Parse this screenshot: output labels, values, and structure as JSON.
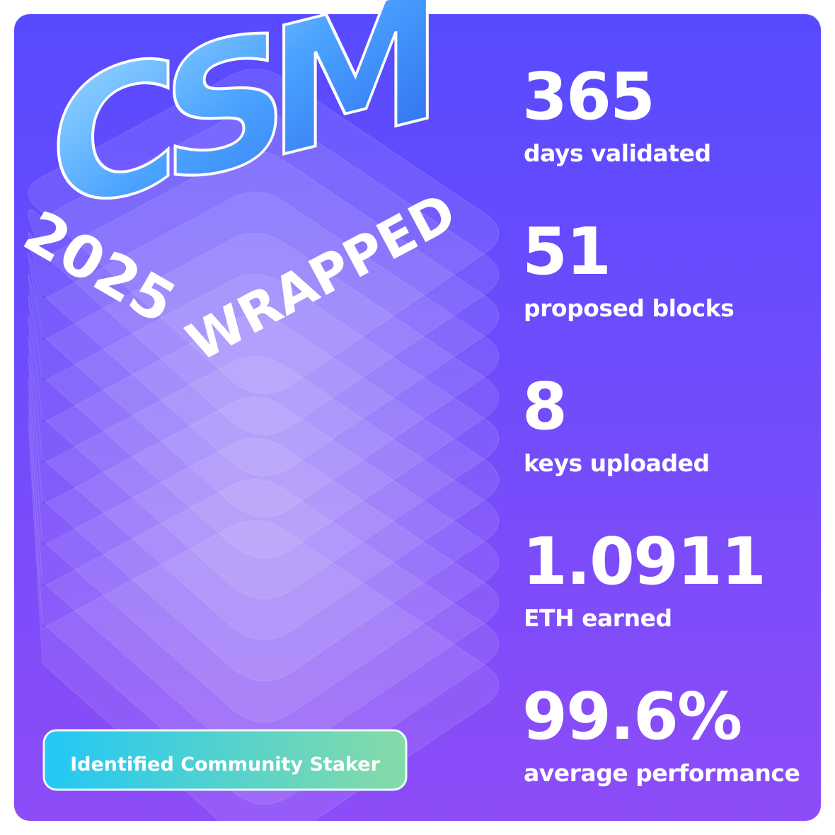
{
  "logo": {
    "letters": "CSM",
    "year": "2025",
    "word": "WRAPPED"
  },
  "badge": "Identified Community Staker",
  "stats": [
    {
      "value": "365",
      "label": "days validated"
    },
    {
      "value": "51",
      "label": "proposed blocks"
    },
    {
      "value": "8",
      "label": "keys uploaded"
    },
    {
      "value": "1.0911",
      "label": "ETH earned"
    },
    {
      "value": "99.6%",
      "label": "average performance"
    }
  ]
}
